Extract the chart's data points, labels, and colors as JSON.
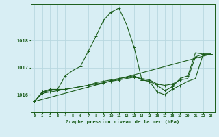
{
  "background_color": "#d8eef4",
  "grid_color": "#b8d8e0",
  "line_color": "#1a5c1a",
  "title": "Graphe pression niveau de la mer (hPa)",
  "xlim": [
    -0.5,
    23.5
  ],
  "ylim": [
    1015.35,
    1019.35
  ],
  "yticks": [
    1016,
    1017,
    1018
  ],
  "xticks": [
    0,
    1,
    2,
    3,
    4,
    5,
    6,
    7,
    8,
    9,
    10,
    11,
    12,
    13,
    14,
    15,
    16,
    17,
    18,
    19,
    20,
    21,
    22,
    23
  ],
  "series": {
    "line1_x": [
      0,
      1,
      2,
      3,
      4,
      5,
      6,
      7,
      8,
      9,
      10,
      11,
      12,
      13,
      14,
      15,
      16,
      17,
      18,
      19,
      20,
      21,
      22,
      23
    ],
    "line1_y": [
      1015.75,
      1016.1,
      1016.2,
      1016.2,
      1016.7,
      1016.9,
      1017.05,
      1017.6,
      1018.15,
      1018.75,
      1019.05,
      1019.2,
      1018.6,
      1017.75,
      1016.55,
      1016.5,
      1016.35,
      1016.15,
      1016.3,
      1016.6,
      1016.7,
      1017.55,
      1017.5,
      1017.5
    ],
    "line2_x": [
      0,
      1,
      2,
      3,
      4,
      5,
      6,
      7,
      8,
      9,
      10,
      11,
      12,
      13,
      14,
      15,
      16,
      17,
      18,
      19,
      20,
      21,
      22,
      23
    ],
    "line2_y": [
      1015.75,
      1016.1,
      1016.15,
      1016.2,
      1016.2,
      1016.25,
      1016.3,
      1016.35,
      1016.45,
      1016.5,
      1016.55,
      1016.6,
      1016.65,
      1016.7,
      1016.55,
      1016.5,
      1016.1,
      1016.0,
      1016.2,
      1016.35,
      1016.5,
      1016.6,
      1017.5,
      1017.5
    ],
    "line3_x": [
      0,
      1,
      2,
      3,
      4,
      5,
      6,
      7,
      8,
      9,
      10,
      11,
      12,
      13,
      14,
      15,
      16,
      17,
      18,
      19,
      20,
      21,
      22,
      23
    ],
    "line3_y": [
      1015.75,
      1016.05,
      1016.1,
      1016.15,
      1016.2,
      1016.25,
      1016.3,
      1016.35,
      1016.4,
      1016.45,
      1016.5,
      1016.55,
      1016.6,
      1016.65,
      1016.6,
      1016.55,
      1016.4,
      1016.35,
      1016.4,
      1016.55,
      1016.6,
      1017.4,
      1017.5,
      1017.5
    ],
    "line4_x": [
      0,
      23
    ],
    "line4_y": [
      1015.75,
      1017.5
    ]
  }
}
